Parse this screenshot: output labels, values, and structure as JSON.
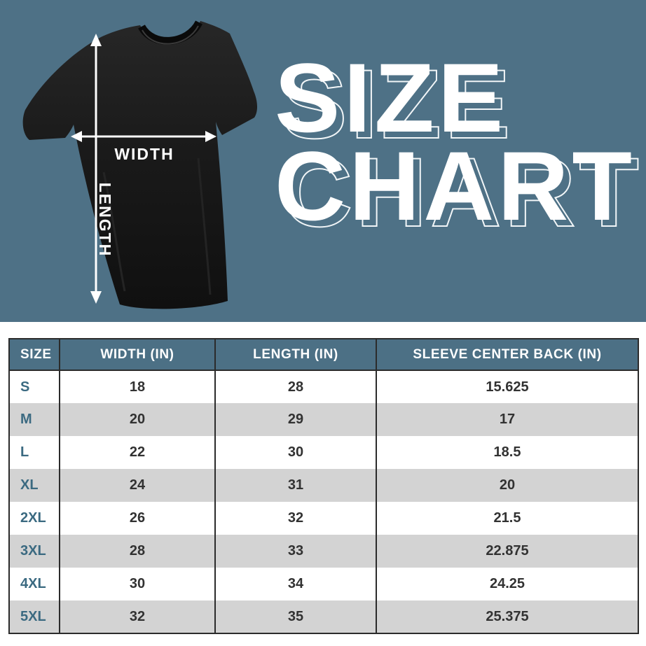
{
  "banner": {
    "title_line1": "SIZE",
    "title_line2": "CHART",
    "shirt_width_label": "WIDTH",
    "shirt_length_label": "LENGTH"
  },
  "colors": {
    "banner_bg": "#4e7186",
    "header_bg": "#4c7085",
    "alt_row_bg": "#d3d3d3",
    "size_label": "#3b6a81",
    "value_text": "#323232",
    "border": "#2b2b2b",
    "title_text": "#ffffff",
    "shirt_color": "#181818",
    "arrow_color": "#ffffff"
  },
  "chart_data": {
    "type": "table",
    "title": "SIZE CHART",
    "columns": [
      "SIZE",
      "WIDTH (IN)",
      "LENGTH (IN)",
      "SLEEVE CENTER BACK (IN)"
    ],
    "rows": [
      [
        "S",
        18,
        28,
        15.625
      ],
      [
        "M",
        20,
        29,
        17
      ],
      [
        "L",
        22,
        30,
        18.5
      ],
      [
        "XL",
        24,
        31,
        20
      ],
      [
        "2XL",
        26,
        32,
        21.5
      ],
      [
        "3XL",
        28,
        33,
        22.875
      ],
      [
        "4XL",
        30,
        34,
        24.25
      ],
      [
        "5XL",
        32,
        35,
        25.375
      ]
    ],
    "layout_hints": {
      "alternating_rows": true,
      "first_data_row_background": "white",
      "header_style": "slate-blue with white bold text"
    }
  }
}
